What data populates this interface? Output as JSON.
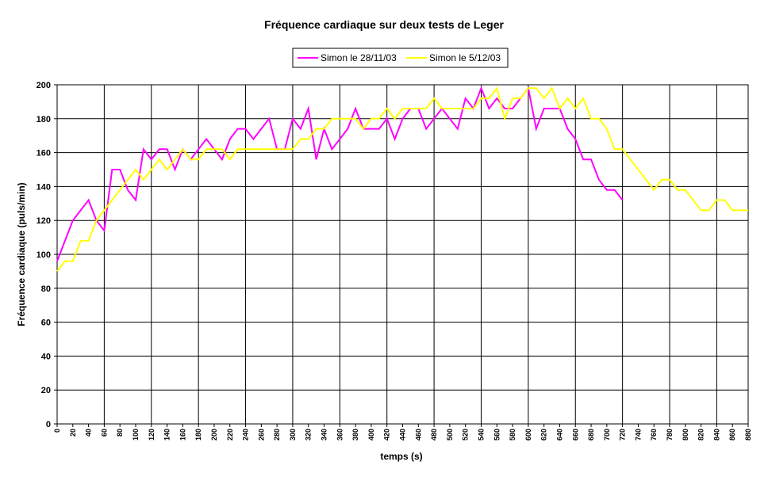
{
  "chart_data": {
    "type": "line",
    "title": "Fréquence cardiaque sur deux tests de Leger",
    "xlabel": "temps (s)",
    "ylabel": "Fréquence cardiaque (puls/min)",
    "xlim": [
      0,
      880
    ],
    "ylim": [
      0,
      200
    ],
    "grid": true,
    "legend_position": "top",
    "x_ticks": [
      "0",
      "20",
      "40",
      "60",
      "80",
      "100",
      "120",
      "140",
      "160",
      "180",
      "200",
      "220",
      "240",
      "260",
      "280",
      "300",
      "320",
      "340",
      "360",
      "380",
      "400",
      "420",
      "440",
      "460",
      "480",
      "500",
      "520",
      "540",
      "560",
      "580",
      "600",
      "620",
      "640",
      "660",
      "680",
      "700",
      "720",
      "740",
      "760",
      "780",
      "800",
      "820",
      "840",
      "860",
      "880"
    ],
    "y_ticks": [
      "0",
      "20",
      "40",
      "60",
      "80",
      "100",
      "120",
      "140",
      "160",
      "180",
      "200"
    ],
    "series": [
      {
        "name": "Simon le 28/11/03",
        "color": "#ff00ff",
        "points": [
          [
            0,
            96
          ],
          [
            10,
            108
          ],
          [
            20,
            120
          ],
          [
            30,
            126
          ],
          [
            40,
            132
          ],
          [
            50,
            120
          ],
          [
            60,
            114
          ],
          [
            70,
            150
          ],
          [
            80,
            150
          ],
          [
            90,
            138
          ],
          [
            100,
            132
          ],
          [
            110,
            162
          ],
          [
            120,
            156
          ],
          [
            130,
            162
          ],
          [
            140,
            162
          ],
          [
            150,
            150
          ],
          [
            160,
            162
          ],
          [
            170,
            156
          ],
          [
            180,
            162
          ],
          [
            190,
            168
          ],
          [
            200,
            162
          ],
          [
            210,
            156
          ],
          [
            220,
            168
          ],
          [
            230,
            174
          ],
          [
            240,
            174
          ],
          [
            250,
            168
          ],
          [
            260,
            174
          ],
          [
            270,
            180
          ],
          [
            280,
            162
          ],
          [
            290,
            162
          ],
          [
            300,
            180
          ],
          [
            310,
            174
          ],
          [
            320,
            186
          ],
          [
            330,
            156
          ],
          [
            340,
            174
          ],
          [
            350,
            162
          ],
          [
            360,
            168
          ],
          [
            370,
            174
          ],
          [
            380,
            186
          ],
          [
            390,
            174
          ],
          [
            400,
            174
          ],
          [
            410,
            174
          ],
          [
            420,
            180
          ],
          [
            430,
            168
          ],
          [
            440,
            180
          ],
          [
            450,
            186
          ],
          [
            460,
            186
          ],
          [
            470,
            174
          ],
          [
            480,
            180
          ],
          [
            490,
            186
          ],
          [
            500,
            180
          ],
          [
            510,
            174
          ],
          [
            520,
            192
          ],
          [
            530,
            186
          ],
          [
            540,
            198
          ],
          [
            550,
            186
          ],
          [
            560,
            192
          ],
          [
            570,
            186
          ],
          [
            580,
            186
          ],
          [
            590,
            192
          ],
          [
            600,
            198
          ],
          [
            610,
            174
          ],
          [
            620,
            186
          ],
          [
            630,
            186
          ],
          [
            640,
            186
          ],
          [
            650,
            174
          ],
          [
            660,
            168
          ],
          [
            670,
            156
          ],
          [
            680,
            156
          ],
          [
            690,
            144
          ],
          [
            700,
            138
          ],
          [
            710,
            138
          ],
          [
            720,
            132
          ]
        ]
      },
      {
        "name": "Simon le 5/12/03",
        "color": "#ffff00",
        "points": [
          [
            0,
            90
          ],
          [
            10,
            96
          ],
          [
            20,
            96
          ],
          [
            30,
            108
          ],
          [
            40,
            108
          ],
          [
            50,
            120
          ],
          [
            60,
            126
          ],
          [
            70,
            132
          ],
          [
            80,
            138
          ],
          [
            90,
            144
          ],
          [
            100,
            150
          ],
          [
            110,
            144
          ],
          [
            120,
            150
          ],
          [
            130,
            156
          ],
          [
            140,
            150
          ],
          [
            150,
            156
          ],
          [
            160,
            162
          ],
          [
            170,
            156
          ],
          [
            180,
            156
          ],
          [
            190,
            162
          ],
          [
            200,
            162
          ],
          [
            210,
            162
          ],
          [
            220,
            156
          ],
          [
            230,
            162
          ],
          [
            240,
            162
          ],
          [
            250,
            162
          ],
          [
            260,
            162
          ],
          [
            270,
            162
          ],
          [
            280,
            162
          ],
          [
            290,
            162
          ],
          [
            300,
            162
          ],
          [
            310,
            168
          ],
          [
            320,
            168
          ],
          [
            330,
            174
          ],
          [
            340,
            174
          ],
          [
            350,
            180
          ],
          [
            360,
            180
          ],
          [
            370,
            180
          ],
          [
            380,
            180
          ],
          [
            390,
            174
          ],
          [
            400,
            180
          ],
          [
            410,
            180
          ],
          [
            420,
            186
          ],
          [
            430,
            180
          ],
          [
            440,
            186
          ],
          [
            450,
            186
          ],
          [
            460,
            186
          ],
          [
            470,
            186
          ],
          [
            480,
            192
          ],
          [
            490,
            186
          ],
          [
            500,
            186
          ],
          [
            510,
            186
          ],
          [
            520,
            186
          ],
          [
            530,
            186
          ],
          [
            540,
            192
          ],
          [
            550,
            192
          ],
          [
            560,
            198
          ],
          [
            570,
            180
          ],
          [
            580,
            192
          ],
          [
            590,
            192
          ],
          [
            600,
            198
          ],
          [
            610,
            198
          ],
          [
            620,
            192
          ],
          [
            630,
            198
          ],
          [
            640,
            186
          ],
          [
            650,
            192
          ],
          [
            660,
            186
          ],
          [
            670,
            192
          ],
          [
            680,
            180
          ],
          [
            690,
            180
          ],
          [
            700,
            174
          ],
          [
            710,
            162
          ],
          [
            720,
            162
          ],
          [
            730,
            156
          ],
          [
            740,
            150
          ],
          [
            750,
            144
          ],
          [
            760,
            138
          ],
          [
            770,
            144
          ],
          [
            780,
            144
          ],
          [
            790,
            138
          ],
          [
            800,
            138
          ],
          [
            810,
            132
          ],
          [
            820,
            126
          ],
          [
            830,
            126
          ],
          [
            840,
            132
          ],
          [
            850,
            132
          ],
          [
            860,
            126
          ],
          [
            870,
            126
          ],
          [
            880,
            126
          ]
        ]
      }
    ]
  }
}
